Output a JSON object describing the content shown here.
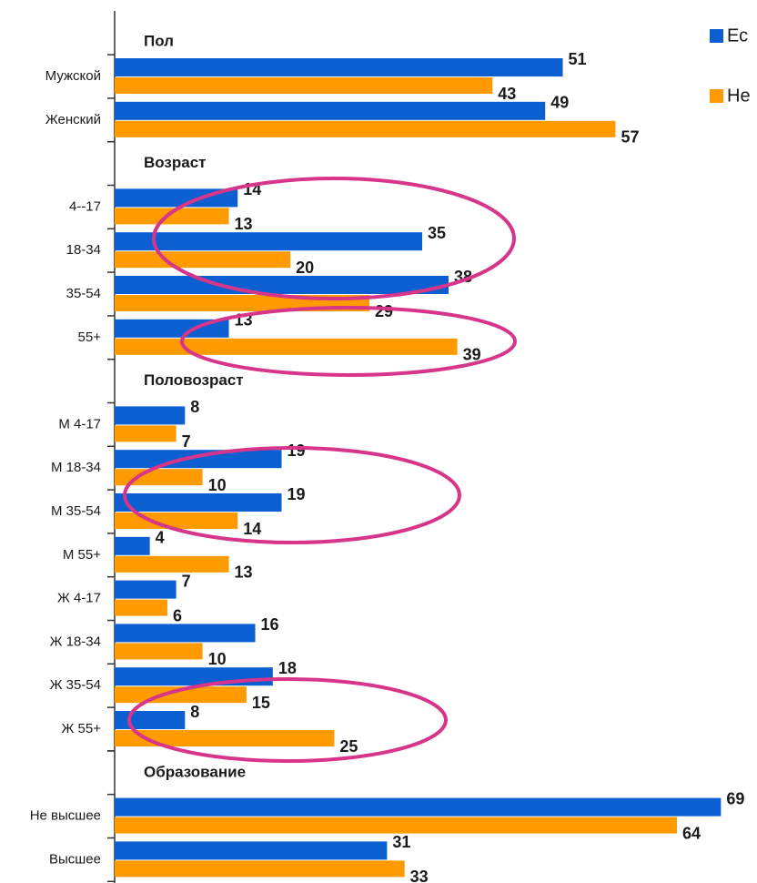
{
  "chart_data": {
    "type": "bar",
    "orientation": "horizontal",
    "xlim": [
      0,
      70
    ],
    "series": [
      {
        "name": "Ес",
        "color": "#0b5fd0"
      },
      {
        "name": "Не",
        "color": "#ff9a00"
      }
    ],
    "sections": [
      {
        "title": "Пол",
        "categories": [
          "Мужской",
          "Женский"
        ],
        "series": [
          {
            "values": [
              51,
              49
            ]
          },
          {
            "values": [
              43,
              57
            ]
          }
        ]
      },
      {
        "title": "Возраст",
        "categories": [
          "4--17",
          "18-34",
          "35-54",
          "55+"
        ],
        "series": [
          {
            "values": [
              14,
              35,
              38,
              13
            ]
          },
          {
            "values": [
              13,
              20,
              29,
              39
            ]
          }
        ]
      },
      {
        "title": "Половозраст",
        "categories": [
          "М 4-17",
          "М 18-34",
          "М 35-54",
          "М 55+",
          "Ж 4-17",
          "Ж 18-34",
          "Ж 35-54",
          "Ж 55+"
        ],
        "series": [
          {
            "values": [
              8,
              19,
              19,
              4,
              7,
              16,
              18,
              8
            ]
          },
          {
            "values": [
              7,
              10,
              14,
              13,
              6,
              10,
              15,
              25
            ]
          }
        ]
      },
      {
        "title": "Образование",
        "categories": [
          "Не высшее",
          "Высшее"
        ],
        "series": [
          {
            "values": [
              69,
              31
            ]
          },
          {
            "values": [
              64,
              33
            ]
          }
        ]
      }
    ]
  }
}
